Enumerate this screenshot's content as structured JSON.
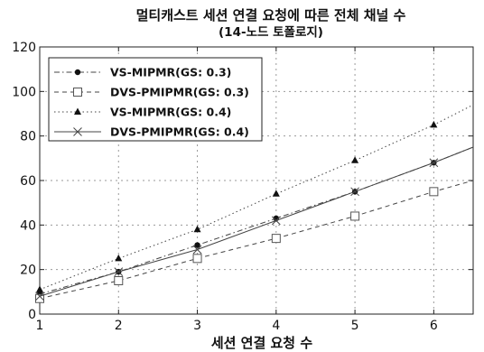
{
  "chart_data": {
    "type": "line",
    "title": "멀티캐스트 세션 연결 요청에 따른 전체 채널 수",
    "subtitle": "(14-노드 토폴로지)",
    "xlabel": "세션 연결 요청 수",
    "ylabel": "",
    "xlim": [
      1,
      6.5
    ],
    "ylim": [
      0,
      120
    ],
    "xticks": [
      1,
      2,
      3,
      4,
      5,
      6
    ],
    "yticks": [
      0,
      20,
      40,
      60,
      80,
      100,
      120
    ],
    "grid": true,
    "legend_position": "top-left",
    "series": [
      {
        "name": "VS-MIPMR(GS: 0.3)",
        "marker": "dot",
        "line": "dash-dot",
        "x": [
          1,
          2,
          3,
          4,
          5,
          6,
          6.5
        ],
        "values": [
          9,
          19,
          31,
          43,
          55,
          68,
          75
        ]
      },
      {
        "name": "DVS-PMIPMR(GS: 0.3)",
        "marker": "square",
        "line": "dash",
        "x": [
          1,
          2,
          3,
          4,
          5,
          6,
          6.5
        ],
        "values": [
          7,
          15,
          25,
          34,
          44,
          55,
          60
        ]
      },
      {
        "name": "VS-MIPMR(GS: 0.4)",
        "marker": "triangle",
        "line": "dotted",
        "x": [
          1,
          2,
          3,
          4,
          5,
          6,
          6.5
        ],
        "values": [
          11,
          25,
          38,
          54,
          69,
          85,
          94
        ]
      },
      {
        "name": "DVS-PMIPMR(GS: 0.4)",
        "marker": "x",
        "line": "solid",
        "x": [
          1,
          2,
          3,
          4,
          5,
          6,
          6.5
        ],
        "values": [
          8,
          19,
          29,
          42,
          55,
          68,
          75
        ]
      }
    ]
  }
}
